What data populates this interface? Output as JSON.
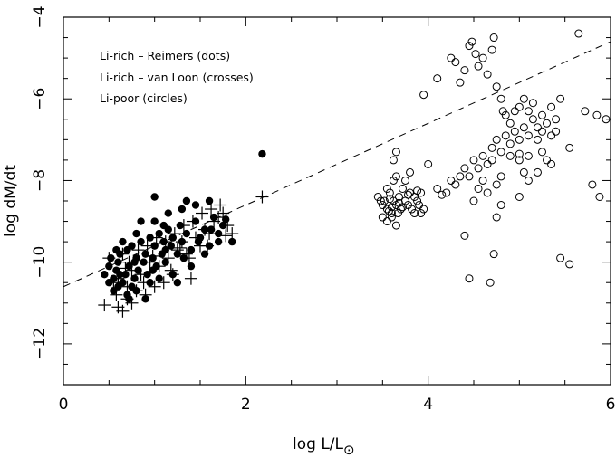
{
  "chart_data": {
    "type": "scatter",
    "title": "",
    "xlabel": "log L/L",
    "xlabel_symbol": "⊙",
    "ylabel": "log dM/dt",
    "xlim": [
      0,
      6
    ],
    "ylim": [
      -13,
      -4
    ],
    "x_ticks": [
      0,
      2,
      4,
      6
    ],
    "y_ticks": [
      -12,
      -10,
      -8,
      -6,
      -4
    ],
    "x_tick_labels": [
      "0",
      "2",
      "4",
      "6"
    ],
    "y_tick_labels": [
      "−12",
      "−10",
      "−8",
      "−6",
      "−4"
    ],
    "grid": false,
    "legend_placement": "top-left",
    "legend": [
      "Li-rich  – Reimers (dots)",
      "Li-rich  – van Loon (crosses)",
      "Li-poor (circles)"
    ],
    "fit_line": {
      "style": "dashed",
      "x": [
        0,
        6
      ],
      "y": [
        -10.6,
        -4.6
      ]
    },
    "series": [
      {
        "marker": "dot",
        "points": [
          [
            0.45,
            -10.3
          ],
          [
            0.5,
            -10.1
          ],
          [
            0.52,
            -9.9
          ],
          [
            0.55,
            -10.4
          ],
          [
            0.58,
            -10.2
          ],
          [
            0.6,
            -10.0
          ],
          [
            0.62,
            -9.8
          ],
          [
            0.65,
            -10.5
          ],
          [
            0.68,
            -10.3
          ],
          [
            0.7,
            -9.7
          ],
          [
            0.72,
            -10.1
          ],
          [
            0.75,
            -9.6
          ],
          [
            0.78,
            -10.4
          ],
          [
            0.8,
            -9.9
          ],
          [
            0.82,
            -10.2
          ],
          [
            0.85,
            -9.5
          ],
          [
            0.88,
            -10.0
          ],
          [
            0.9,
            -9.8
          ],
          [
            0.92,
            -10.3
          ],
          [
            0.95,
            -9.4
          ],
          [
            0.98,
            -9.9
          ],
          [
            1.0,
            -9.6
          ],
          [
            1.02,
            -10.1
          ],
          [
            1.05,
            -9.3
          ],
          [
            1.08,
            -9.8
          ],
          [
            1.1,
            -9.5
          ],
          [
            1.12,
            -10.0
          ],
          [
            1.15,
            -9.2
          ],
          [
            1.18,
            -9.6
          ],
          [
            1.2,
            -9.4
          ],
          [
            1.25,
            -9.8
          ],
          [
            1.28,
            -9.1
          ],
          [
            1.3,
            -9.5
          ],
          [
            1.35,
            -9.3
          ],
          [
            1.4,
            -9.7
          ],
          [
            1.45,
            -9.0
          ],
          [
            1.5,
            -9.4
          ],
          [
            1.55,
            -9.2
          ],
          [
            1.6,
            -9.6
          ],
          [
            1.65,
            -8.9
          ],
          [
            1.7,
            -9.3
          ],
          [
            1.75,
            -9.1
          ],
          [
            1.85,
            -9.5
          ],
          [
            0.55,
            -10.7
          ],
          [
            0.6,
            -10.6
          ],
          [
            0.7,
            -10.8
          ],
          [
            0.75,
            -10.6
          ],
          [
            0.8,
            -10.7
          ],
          [
            0.95,
            -10.5
          ],
          [
            1.05,
            -10.4
          ],
          [
            1.2,
            -10.3
          ],
          [
            0.65,
            -9.5
          ],
          [
            0.8,
            -9.3
          ],
          [
            1.0,
            -9.0
          ],
          [
            1.15,
            -8.8
          ],
          [
            1.3,
            -8.7
          ],
          [
            1.45,
            -8.6
          ],
          [
            1.6,
            -8.5
          ],
          [
            1.0,
            -8.4
          ],
          [
            1.35,
            -8.5
          ],
          [
            2.18,
            -7.35
          ],
          [
            0.85,
            -9.0
          ],
          [
            1.1,
            -9.1
          ],
          [
            1.25,
            -10.5
          ],
          [
            0.5,
            -10.5
          ],
          [
            0.58,
            -9.7
          ],
          [
            0.72,
            -10.9
          ],
          [
            0.9,
            -10.9
          ],
          [
            1.4,
            -10.1
          ],
          [
            1.55,
            -9.8
          ],
          [
            1.7,
            -9.5
          ],
          [
            0.62,
            -10.3
          ],
          [
            0.78,
            -10.0
          ],
          [
            0.98,
            -10.2
          ],
          [
            1.12,
            -9.7
          ],
          [
            1.32,
            -9.9
          ],
          [
            1.48,
            -9.5
          ],
          [
            1.62,
            -9.2
          ],
          [
            1.78,
            -8.95
          ]
        ]
      },
      {
        "marker": "cross",
        "points": [
          [
            0.45,
            -11.05
          ],
          [
            0.6,
            -11.1
          ],
          [
            0.65,
            -11.2
          ],
          [
            0.7,
            -10.9
          ],
          [
            0.75,
            -11.0
          ],
          [
            0.8,
            -10.7
          ],
          [
            0.9,
            -10.8
          ],
          [
            1.0,
            -10.6
          ],
          [
            1.1,
            -10.5
          ],
          [
            1.2,
            -10.3
          ],
          [
            1.4,
            -10.4
          ],
          [
            0.55,
            -10.5
          ],
          [
            0.6,
            -10.4
          ],
          [
            0.7,
            -10.6
          ],
          [
            0.75,
            -10.2
          ],
          [
            0.85,
            -10.3
          ],
          [
            0.95,
            -10.0
          ],
          [
            1.05,
            -10.1
          ],
          [
            1.15,
            -9.9
          ],
          [
            1.25,
            -9.7
          ],
          [
            1.3,
            -9.5
          ],
          [
            1.35,
            -9.8
          ],
          [
            1.45,
            -9.4
          ],
          [
            1.5,
            -9.6
          ],
          [
            1.55,
            -9.2
          ],
          [
            1.6,
            -9.3
          ],
          [
            1.65,
            -9.0
          ],
          [
            1.7,
            -8.9
          ],
          [
            1.75,
            -8.8
          ],
          [
            1.8,
            -9.1
          ],
          [
            0.5,
            -9.9
          ],
          [
            0.65,
            -9.8
          ],
          [
            0.72,
            -10.0
          ],
          [
            0.82,
            -9.7
          ],
          [
            0.92,
            -9.6
          ],
          [
            1.02,
            -9.4
          ],
          [
            1.12,
            -9.5
          ],
          [
            1.22,
            -9.3
          ],
          [
            1.32,
            -9.1
          ],
          [
            1.42,
            -9.0
          ],
          [
            1.52,
            -8.8
          ],
          [
            1.62,
            -8.7
          ],
          [
            1.72,
            -8.6
          ],
          [
            2.18,
            -8.4
          ],
          [
            1.85,
            -9.3
          ],
          [
            0.58,
            -10.8
          ],
          [
            0.88,
            -10.5
          ],
          [
            1.18,
            -10.2
          ],
          [
            1.38,
            -9.9
          ],
          [
            1.58,
            -9.6
          ],
          [
            1.78,
            -9.35
          ],
          [
            0.68,
            -10.15
          ],
          [
            0.98,
            -9.85
          ],
          [
            1.28,
            -9.65
          ]
        ]
      },
      {
        "marker": "circle",
        "points": [
          [
            3.45,
            -8.4
          ],
          [
            3.5,
            -8.6
          ],
          [
            3.52,
            -8.5
          ],
          [
            3.55,
            -8.7
          ],
          [
            3.58,
            -8.3
          ],
          [
            3.6,
            -8.8
          ],
          [
            3.62,
            -8.5
          ],
          [
            3.65,
            -8.6
          ],
          [
            3.68,
            -8.4
          ],
          [
            3.7,
            -8.7
          ],
          [
            3.72,
            -8.2
          ],
          [
            3.75,
            -8.5
          ],
          [
            3.78,
            -8.6
          ],
          [
            3.8,
            -8.3
          ],
          [
            3.82,
            -8.7
          ],
          [
            3.85,
            -8.4
          ],
          [
            3.88,
            -8.5
          ],
          [
            3.9,
            -8.6
          ],
          [
            3.92,
            -8.3
          ],
          [
            3.95,
            -8.7
          ],
          [
            3.5,
            -8.9
          ],
          [
            3.55,
            -9.0
          ],
          [
            3.6,
            -8.9
          ],
          [
            3.65,
            -9.1
          ],
          [
            3.55,
            -8.2
          ],
          [
            3.62,
            -8.0
          ],
          [
            3.65,
            -7.9
          ],
          [
            3.75,
            -8.0
          ],
          [
            3.8,
            -7.8
          ],
          [
            3.62,
            -7.5
          ],
          [
            3.65,
            -7.3
          ],
          [
            3.85,
            -8.8
          ],
          [
            3.92,
            -8.8
          ],
          [
            3.48,
            -8.5
          ],
          [
            3.58,
            -8.45
          ],
          [
            3.68,
            -8.55
          ],
          [
            3.72,
            -8.65
          ],
          [
            3.78,
            -8.35
          ],
          [
            3.88,
            -8.25
          ],
          [
            3.6,
            -8.65
          ],
          [
            3.57,
            -8.75
          ],
          [
            3.67,
            -8.8
          ],
          [
            4.0,
            -7.6
          ],
          [
            4.1,
            -8.2
          ],
          [
            4.15,
            -8.35
          ],
          [
            4.2,
            -8.3
          ],
          [
            4.25,
            -8.0
          ],
          [
            4.3,
            -8.1
          ],
          [
            4.35,
            -7.9
          ],
          [
            4.4,
            -7.7
          ],
          [
            4.45,
            -7.9
          ],
          [
            4.5,
            -7.5
          ],
          [
            4.55,
            -7.7
          ],
          [
            4.6,
            -7.4
          ],
          [
            4.65,
            -7.6
          ],
          [
            4.7,
            -7.2
          ],
          [
            4.75,
            -7.0
          ],
          [
            4.8,
            -7.3
          ],
          [
            4.85,
            -6.9
          ],
          [
            4.9,
            -7.1
          ],
          [
            4.95,
            -6.8
          ],
          [
            5.0,
            -7.0
          ],
          [
            5.05,
            -6.7
          ],
          [
            5.1,
            -6.9
          ],
          [
            5.15,
            -6.5
          ],
          [
            5.2,
            -6.7
          ],
          [
            5.25,
            -6.4
          ],
          [
            5.3,
            -6.6
          ],
          [
            5.35,
            -6.2
          ],
          [
            5.4,
            -6.5
          ],
          [
            5.45,
            -6.0
          ],
          [
            4.85,
            -6.4
          ],
          [
            4.9,
            -6.6
          ],
          [
            5.0,
            -6.2
          ],
          [
            5.05,
            -6.0
          ],
          [
            5.1,
            -6.3
          ],
          [
            5.15,
            -6.1
          ],
          [
            4.95,
            -6.3
          ],
          [
            5.2,
            -7.0
          ],
          [
            5.25,
            -7.3
          ],
          [
            5.3,
            -7.5
          ],
          [
            5.35,
            -7.6
          ],
          [
            5.0,
            -7.5
          ],
          [
            5.05,
            -7.8
          ],
          [
            4.7,
            -7.5
          ],
          [
            4.75,
            -8.1
          ],
          [
            4.8,
            -7.9
          ],
          [
            4.6,
            -8.0
          ],
          [
            4.55,
            -8.2
          ],
          [
            4.5,
            -8.5
          ],
          [
            4.65,
            -8.3
          ],
          [
            4.8,
            -8.6
          ],
          [
            5.0,
            -8.4
          ],
          [
            5.1,
            -8.0
          ],
          [
            5.2,
            -7.8
          ],
          [
            3.95,
            -5.9
          ],
          [
            4.1,
            -5.5
          ],
          [
            4.25,
            -5.0
          ],
          [
            4.3,
            -5.1
          ],
          [
            4.35,
            -5.6
          ],
          [
            4.4,
            -5.3
          ],
          [
            4.45,
            -4.7
          ],
          [
            4.48,
            -4.6
          ],
          [
            4.52,
            -4.9
          ],
          [
            4.55,
            -5.2
          ],
          [
            4.6,
            -5.0
          ],
          [
            4.65,
            -5.4
          ],
          [
            4.7,
            -4.8
          ],
          [
            4.72,
            -4.5
          ],
          [
            4.75,
            -5.7
          ],
          [
            4.8,
            -6.0
          ],
          [
            4.82,
            -6.3
          ],
          [
            4.4,
            -9.35
          ],
          [
            4.45,
            -10.4
          ],
          [
            4.68,
            -10.5
          ],
          [
            4.72,
            -9.8
          ],
          [
            4.75,
            -8.9
          ],
          [
            5.45,
            -9.9
          ],
          [
            5.55,
            -10.05
          ],
          [
            5.55,
            -7.2
          ],
          [
            5.65,
            -4.4
          ],
          [
            5.72,
            -6.3
          ],
          [
            5.8,
            -8.1
          ],
          [
            5.85,
            -6.4
          ],
          [
            5.88,
            -8.4
          ],
          [
            5.95,
            -6.5
          ],
          [
            5.0,
            -7.35
          ],
          [
            5.1,
            -7.4
          ],
          [
            4.9,
            -7.4
          ],
          [
            5.35,
            -6.9
          ],
          [
            5.25,
            -6.8
          ],
          [
            5.4,
            -6.8
          ]
        ]
      }
    ]
  }
}
